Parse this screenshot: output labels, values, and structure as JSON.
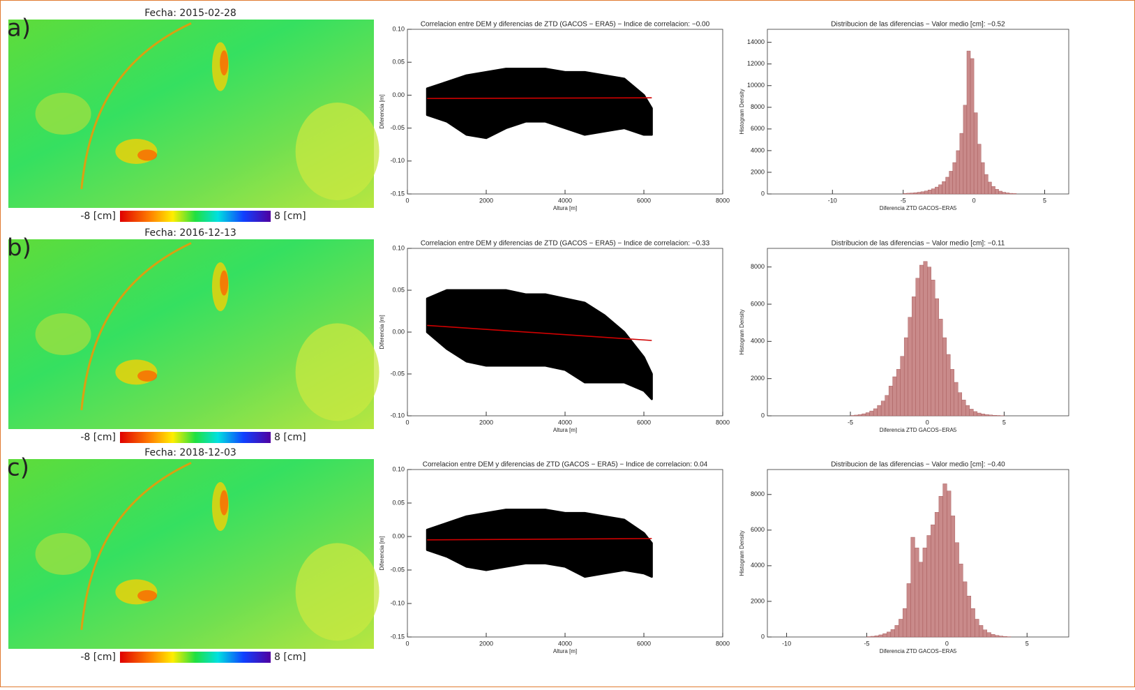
{
  "chart_data": [
    {
      "type": "map",
      "label": "a)",
      "title": "Fecha: 2015-02-28",
      "colorbar_labels": [
        "-8 [cm]",
        "8 [cm]"
      ]
    },
    {
      "type": "scatter",
      "title": "Correlacion entre DEM y diferencias de ZTD (GACOS − ERA5) − Indice de correlacion: −0.00",
      "xlabel": "Altura [m]",
      "ylabel": "Diferencia [m]",
      "x": [
        500,
        1000,
        1500,
        2000,
        2500,
        3000,
        3500,
        4000,
        4500,
        5000,
        5500,
        6000,
        6200
      ],
      "upper": [
        0.01,
        0.02,
        0.03,
        0.035,
        0.04,
        0.04,
        0.04,
        0.035,
        0.035,
        0.03,
        0.025,
        0.0,
        -0.02
      ],
      "lower": [
        -0.03,
        -0.04,
        -0.06,
        -0.065,
        -0.05,
        -0.04,
        -0.04,
        -0.05,
        -0.06,
        -0.055,
        -0.05,
        -0.06,
        -0.06
      ],
      "fit": {
        "x": [
          500,
          6200
        ],
        "values": [
          -0.005,
          -0.004
        ],
        "color": "#d00000"
      },
      "color": "#000000",
      "xlim": [
        0,
        8000
      ],
      "xticks": [
        0,
        2000,
        4000,
        6000,
        8000
      ],
      "ylim": [
        -0.15,
        0.1
      ],
      "yticks": [
        {
          "value": -0.15,
          "label": "-0.15"
        },
        {
          "value": -0.1,
          "label": "-0.10"
        },
        {
          "value": -0.05,
          "label": "-0.05"
        },
        {
          "value": 0,
          "label": "0.00"
        },
        {
          "value": 0.05,
          "label": "0.05"
        },
        {
          "value": 0.1,
          "label": "0.10"
        }
      ]
    },
    {
      "type": "histogram",
      "title": "Distribucion de las diferencias − Valor medio [cm]: −0.52",
      "xlabel": "Diferencia ZTD GACOS−ERA5",
      "ylabel": "Histogram Density",
      "color": "#c98a8a",
      "bins": [
        -5,
        -4.75,
        -4.5,
        -4.25,
        -4,
        -3.75,
        -3.5,
        -3.25,
        -3,
        -2.75,
        -2.5,
        -2.25,
        -2,
        -1.75,
        -1.5,
        -1.25,
        -1,
        -0.75,
        -0.5,
        -0.25,
        0,
        0.25,
        0.5,
        0.75,
        1,
        1.25,
        1.5,
        1.75,
        2,
        2.25,
        2.5,
        2.75,
        3
      ],
      "values": [
        50,
        70,
        90,
        120,
        160,
        210,
        280,
        370,
        480,
        640,
        850,
        1150,
        1550,
        2100,
        2900,
        4000,
        5600,
        8200,
        13200,
        12500,
        7500,
        4600,
        2900,
        1800,
        1100,
        700,
        430,
        260,
        160,
        100,
        60,
        40
      ],
      "xlim": [
        -14.6,
        6.7
      ],
      "xticks": [
        -10,
        -5,
        0,
        5
      ],
      "ylim": [
        0,
        15200
      ],
      "yticks": [
        0,
        2000,
        4000,
        6000,
        8000,
        10000,
        12000,
        14000
      ]
    },
    {
      "type": "map",
      "label": "b)",
      "title": "Fecha: 2016-12-13",
      "colorbar_labels": [
        "-8 [cm]",
        "8 [cm]"
      ]
    },
    {
      "type": "scatter",
      "title": "Correlacion entre DEM y diferencias de ZTD (GACOS − ERA5) − Indice de correlacion: −0.33",
      "xlabel": "Altura [m]",
      "ylabel": "Diferencia [m]",
      "x": [
        500,
        1000,
        1500,
        2000,
        2500,
        3000,
        3500,
        4000,
        4500,
        5000,
        5500,
        6000,
        6200
      ],
      "upper": [
        0.04,
        0.05,
        0.05,
        0.05,
        0.05,
        0.045,
        0.045,
        0.04,
        0.035,
        0.02,
        0.0,
        -0.03,
        -0.05
      ],
      "lower": [
        0.0,
        -0.02,
        -0.035,
        -0.04,
        -0.04,
        -0.04,
        -0.04,
        -0.045,
        -0.06,
        -0.06,
        -0.06,
        -0.07,
        -0.08
      ],
      "fit": {
        "x": [
          500,
          6200
        ],
        "values": [
          0.008,
          -0.01
        ],
        "color": "#d00000"
      },
      "color": "#000000",
      "xlim": [
        0,
        8000
      ],
      "xticks": [
        0,
        2000,
        4000,
        6000,
        8000
      ],
      "ylim": [
        -0.1,
        0.1
      ],
      "yticks": [
        {
          "value": -0.1,
          "label": "-0.10"
        },
        {
          "value": -0.05,
          "label": "-0.05"
        },
        {
          "value": 0,
          "label": "0.00"
        },
        {
          "value": 0.05,
          "label": "0.05"
        },
        {
          "value": 0.1,
          "label": "0.10"
        }
      ]
    },
    {
      "type": "histogram",
      "title": "Distribucion de las diferencias − Valor medio [cm]: −0.11",
      "xlabel": "Diferencia ZTD GACOS−ERA5",
      "ylabel": "Histogram Density",
      "color": "#c98a8a",
      "bins": [
        -5,
        -4.75,
        -4.5,
        -4.25,
        -4,
        -3.75,
        -3.5,
        -3.25,
        -3,
        -2.75,
        -2.5,
        -2.25,
        -2,
        -1.75,
        -1.5,
        -1.25,
        -1,
        -0.75,
        -0.5,
        -0.25,
        0,
        0.25,
        0.5,
        0.75,
        1,
        1.25,
        1.5,
        1.75,
        2,
        2.25,
        2.5,
        2.75,
        3,
        3.25,
        3.5,
        3.75,
        4,
        4.25,
        4.5,
        4.75,
        5
      ],
      "values": [
        20,
        40,
        70,
        110,
        170,
        260,
        380,
        560,
        800,
        1100,
        1600,
        2100,
        2500,
        3200,
        4200,
        5300,
        6400,
        7400,
        8100,
        8300,
        8000,
        7300,
        6300,
        5200,
        4200,
        3300,
        2500,
        1800,
        1250,
        850,
        560,
        360,
        230,
        150,
        100,
        70,
        45,
        30,
        20,
        10
      ],
      "xlim": [
        -10.4,
        9.2
      ],
      "xticks": [
        -5,
        0,
        5
      ],
      "ylim": [
        0,
        9000
      ],
      "yticks": [
        0,
        2000,
        4000,
        6000,
        8000
      ]
    },
    {
      "type": "map",
      "label": "c)",
      "title": "Fecha: 2018-12-03",
      "colorbar_labels": [
        "-8 [cm]",
        "8 [cm]"
      ]
    },
    {
      "type": "scatter",
      "title": "Correlacion entre DEM y diferencias de ZTD (GACOS − ERA5) − Indice de correlacion: 0.04",
      "xlabel": "Altura [m]",
      "ylabel": "Diferencia [m]",
      "x": [
        500,
        1000,
        1500,
        2000,
        2500,
        3000,
        3500,
        4000,
        4500,
        5000,
        5500,
        6000,
        6200
      ],
      "upper": [
        0.01,
        0.02,
        0.03,
        0.035,
        0.04,
        0.04,
        0.04,
        0.035,
        0.035,
        0.03,
        0.025,
        0.005,
        -0.01
      ],
      "lower": [
        -0.02,
        -0.03,
        -0.045,
        -0.05,
        -0.045,
        -0.04,
        -0.04,
        -0.045,
        -0.06,
        -0.055,
        -0.05,
        -0.055,
        -0.06
      ],
      "fit": {
        "x": [
          500,
          6200
        ],
        "values": [
          -0.005,
          -0.003
        ],
        "color": "#d00000"
      },
      "color": "#000000",
      "xlim": [
        0,
        8000
      ],
      "xticks": [
        0,
        2000,
        4000,
        6000,
        8000
      ],
      "ylim": [
        -0.15,
        0.1
      ],
      "yticks": [
        {
          "value": -0.15,
          "label": "-0.15"
        },
        {
          "value": -0.1,
          "label": "-0.10"
        },
        {
          "value": -0.05,
          "label": "-0.05"
        },
        {
          "value": 0,
          "label": "0.00"
        },
        {
          "value": 0.05,
          "label": "0.05"
        },
        {
          "value": 0.1,
          "label": "0.10"
        }
      ]
    },
    {
      "type": "histogram",
      "title": "Distribucion de las diferencias − Valor medio [cm]: −0.40",
      "xlabel": "Diferencia ZTD GACOS−ERA5",
      "ylabel": "Histogram Density",
      "color": "#c98a8a",
      "bins": [
        -5,
        -4.75,
        -4.5,
        -4.25,
        -4,
        -3.75,
        -3.5,
        -3.25,
        -3,
        -2.75,
        -2.5,
        -2.25,
        -2,
        -1.75,
        -1.5,
        -1.25,
        -1,
        -0.75,
        -0.5,
        -0.25,
        0,
        0.25,
        0.5,
        0.75,
        1,
        1.25,
        1.5,
        1.75,
        2,
        2.25,
        2.5,
        2.75,
        3,
        3.25,
        3.5,
        3.75,
        4
      ],
      "values": [
        20,
        40,
        70,
        120,
        190,
        280,
        420,
        650,
        1000,
        1600,
        3000,
        5600,
        5000,
        4200,
        5000,
        5700,
        6300,
        7000,
        7900,
        8600,
        8200,
        6800,
        5300,
        4100,
        3100,
        2300,
        1600,
        1000,
        650,
        400,
        250,
        150,
        90,
        55,
        30,
        15
      ],
      "xlim": [
        -11.2,
        7.6
      ],
      "xticks": [
        -10,
        -5,
        0,
        5
      ],
      "ylim": [
        0,
        9400
      ],
      "yticks": [
        0,
        2000,
        4000,
        6000,
        8000
      ]
    }
  ]
}
